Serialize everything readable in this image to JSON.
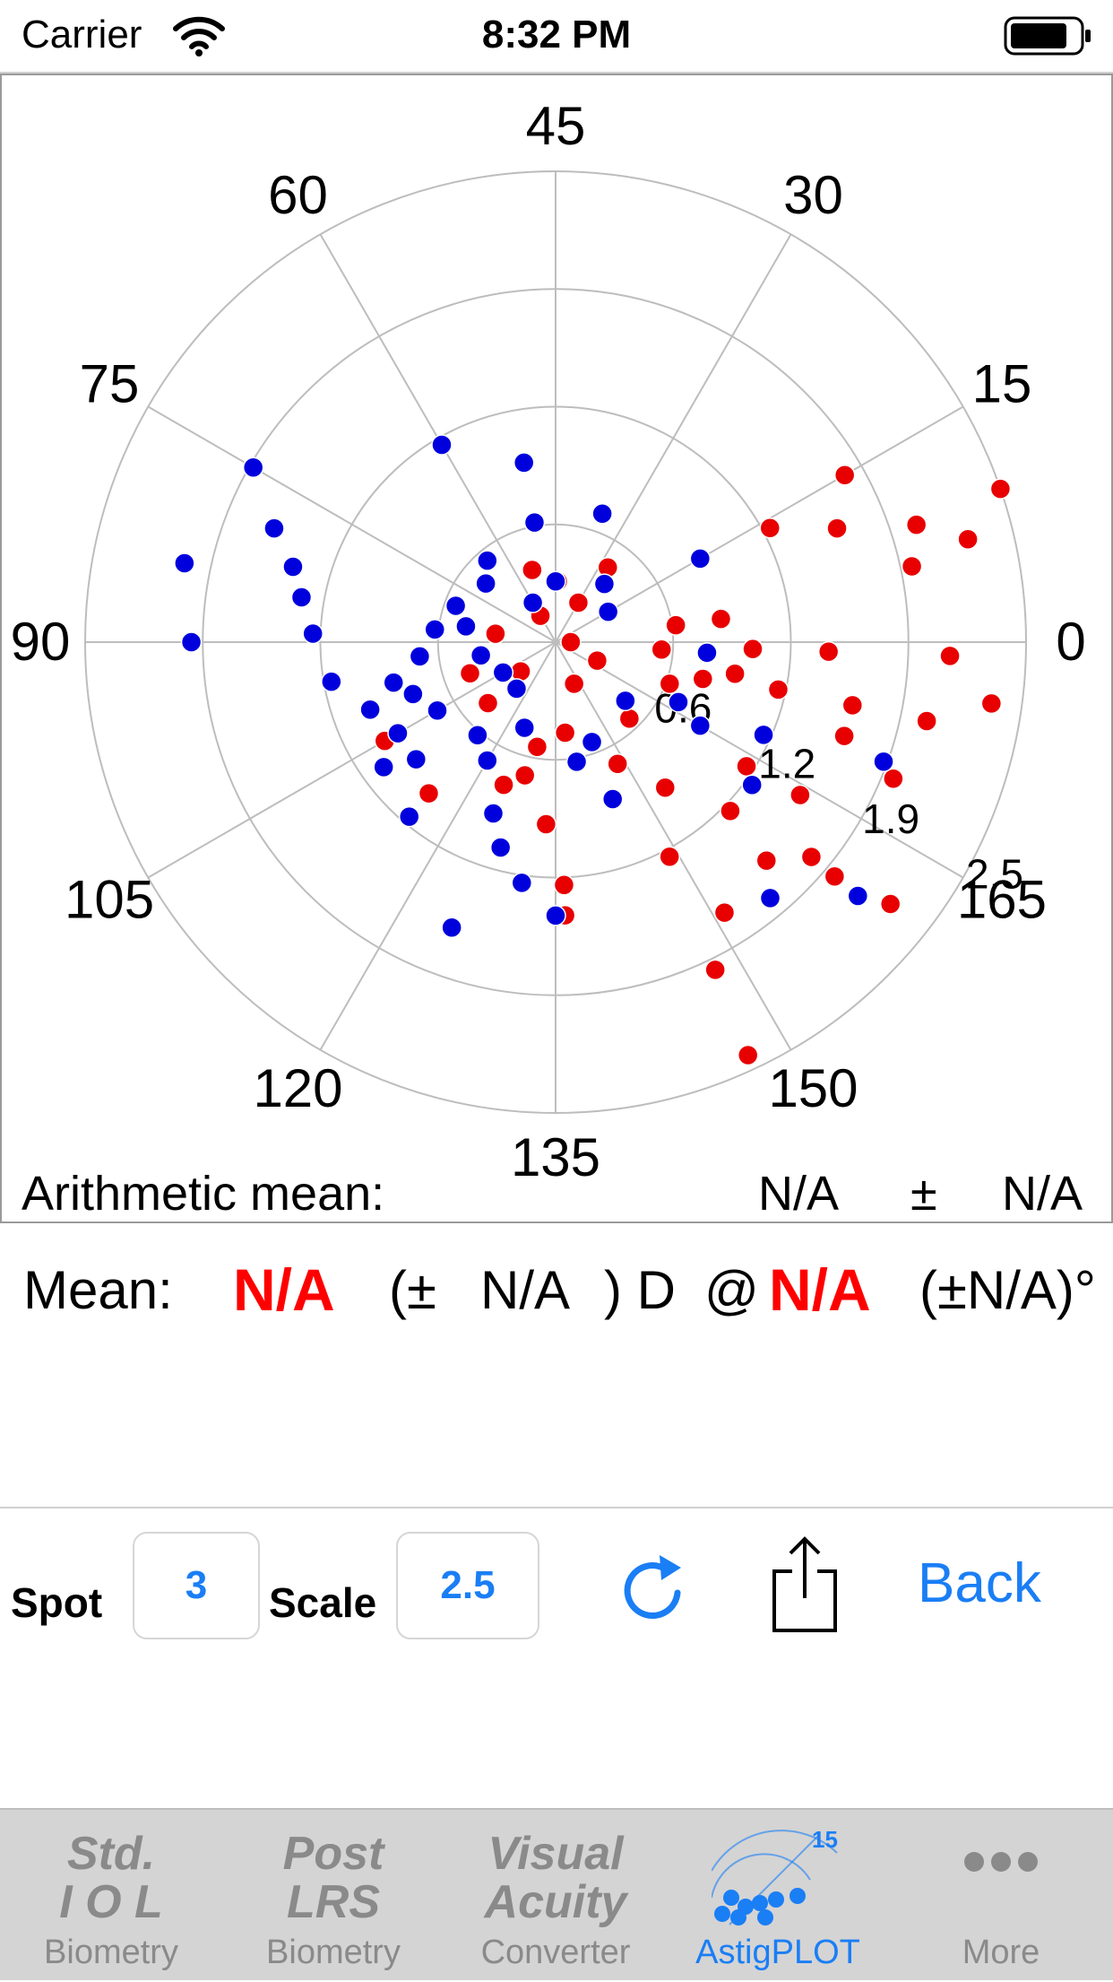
{
  "status_bar": {
    "carrier": "Carrier",
    "time": "8:32 PM"
  },
  "chart_data": {
    "type": "scatter",
    "coordinate_system": "polar-double-angle",
    "angle_labels": [
      "0",
      "15",
      "30",
      "45",
      "60",
      "75",
      "90",
      "105",
      "120",
      "135",
      "150",
      "165"
    ],
    "radial_ticks": [
      "0.6",
      "1.2",
      "1.9",
      "2.5"
    ],
    "radial_max": 2.5,
    "series": [
      {
        "color": "#e80000",
        "points": [
          [
            0.3,
            -24
          ],
          [
            0.3,
            -66
          ],
          [
            0.3,
            -140
          ],
          [
            0.5,
            -170
          ],
          [
            0.6,
            -138
          ],
          [
            0.6,
            -160
          ],
          [
            0.7,
            -4
          ],
          [
            0.7,
            -46
          ],
          [
            0.8,
            -20
          ],
          [
            0.8,
            8
          ],
          [
            0.9,
            -103
          ],
          [
            0.9,
            -63
          ],
          [
            1.2,
            -53
          ],
          [
            1.2,
            -93
          ],
          [
            1.3,
            -150
          ],
          [
            1.0,
            -110
          ],
          [
            0.7,
            -100
          ],
          [
            0.6,
            -84
          ],
          [
            1.0,
            -14
          ],
          [
            1.3,
            -130
          ],
          [
            1.6,
            -88
          ],
          [
            1.6,
            -44
          ],
          [
            1.6,
            -62
          ],
          [
            1.5,
            -33
          ],
          [
            1.5,
            -12
          ],
          [
            1.6,
            -62
          ],
          [
            1.8,
            -88
          ],
          [
            2.1,
            -58
          ],
          [
            2.4,
            -64
          ],
          [
            2.0,
            -46
          ],
          [
            2.2,
            -40
          ],
          [
            1.9,
            -32
          ],
          [
            2.0,
            -18
          ],
          [
            2.4,
            -22
          ],
          [
            2.5,
            -12
          ],
          [
            3.0,
            -65
          ],
          [
            2.8,
            -38
          ],
          [
            2.0,
            -12
          ],
          [
            1.8,
            -2
          ],
          [
            1.3,
            -2
          ],
          [
            1.2,
            -10
          ],
          [
            1.1,
            8
          ],
          [
            2.4,
            12
          ],
          [
            2.0,
            22
          ],
          [
            2.6,
            -2
          ],
          [
            2.5,
            18
          ],
          [
            2.9,
            -8
          ],
          [
            2.8,
            14
          ],
          [
            1.6,
            28
          ],
          [
            2.2,
            30
          ],
          [
            3.1,
            19
          ],
          [
            2.4,
            -40
          ],
          [
            0.6,
            55
          ],
          [
            0.4,
            88
          ],
          [
            0.3,
            60
          ],
          [
            0.5,
            108
          ],
          [
            0.4,
            172
          ],
          [
            0.2,
            120
          ],
          [
            0.1,
            0
          ]
        ]
      },
      {
        "color": "#0000dd",
        "points": [
          [
            0.8,
            -80
          ],
          [
            0.6,
            -110
          ],
          [
            0.9,
            -120
          ],
          [
            0.4,
            -130
          ],
          [
            0.4,
            -150
          ],
          [
            0.5,
            -170
          ],
          [
            0.6,
            170
          ],
          [
            0.3,
            120
          ],
          [
            0.4,
            90
          ],
          [
            0.8,
            100
          ],
          [
            0.7,
            130
          ],
          [
            0.6,
            140
          ],
          [
            0.7,
            160
          ],
          [
            0.8,
            174
          ],
          [
            0.9,
            -174
          ],
          [
            1.0,
            -160
          ],
          [
            1.1,
            -166
          ],
          [
            0.9,
            -150
          ],
          [
            1.2,
            -140
          ],
          [
            0.8,
            -130
          ],
          [
            1.3,
            -160
          ],
          [
            1.4,
            -144
          ],
          [
            1.5,
            -130
          ],
          [
            1.2,
            -110
          ],
          [
            1.4,
            -105
          ],
          [
            1.6,
            -98
          ],
          [
            1.8,
            -90
          ],
          [
            2.0,
            -110
          ],
          [
            1.2,
            -150
          ],
          [
            1.5,
            -170
          ],
          [
            1.6,
            178
          ],
          [
            1.7,
            170
          ],
          [
            1.8,
            164
          ],
          [
            2.0,
            158
          ],
          [
            2.3,
            150
          ],
          [
            2.5,
            168
          ],
          [
            2.4,
            180
          ],
          [
            1.5,
            120
          ],
          [
            1.2,
            100
          ],
          [
            0.7,
            -70
          ],
          [
            0.6,
            -40
          ],
          [
            1.1,
            -30
          ],
          [
            1.5,
            -24
          ],
          [
            0.9,
            -26
          ],
          [
            1.1,
            30
          ],
          [
            0.9,
            70
          ],
          [
            1.6,
            -36
          ],
          [
            2.2,
            -50
          ],
          [
            2.3,
            -20
          ],
          [
            2.6,
            -40
          ],
          [
            1.1,
            -70
          ],
          [
            0.5,
            50
          ],
          [
            0.4,
            30
          ],
          [
            1.0,
            -4
          ]
        ]
      }
    ]
  },
  "arithmetic": {
    "label": "Arithmetic mean:",
    "value1": "N/A",
    "pm": "±",
    "value2": "N/A"
  },
  "mean": {
    "label": "Mean:",
    "magnitude": "N/A",
    "paren_open": "(±",
    "mag_sd": "N/A",
    "paren_close_unit": ") D",
    "at": "@",
    "axis": "N/A",
    "axis_sd": "(±N/A)°"
  },
  "toolbar": {
    "spot_label": "Spot",
    "spot_value": "3",
    "scale_label": "Scale",
    "scale_value": "2.5",
    "back_label": "Back"
  },
  "tabs": [
    {
      "icon_line1": "Std.",
      "icon_line2": "I O L",
      "label": "Biometry"
    },
    {
      "icon_line1": "Post",
      "icon_line2": "LRS",
      "label": "Biometry"
    },
    {
      "icon_line1": "Visual",
      "icon_line2": "Acuity",
      "label": "Converter"
    },
    {
      "icon_badge": "15",
      "label": "AstigPLOT"
    },
    {
      "label": "More"
    }
  ],
  "colors": {
    "accent": "#1a7ef5",
    "red": "#ff0000",
    "blue": "#0000dd"
  }
}
